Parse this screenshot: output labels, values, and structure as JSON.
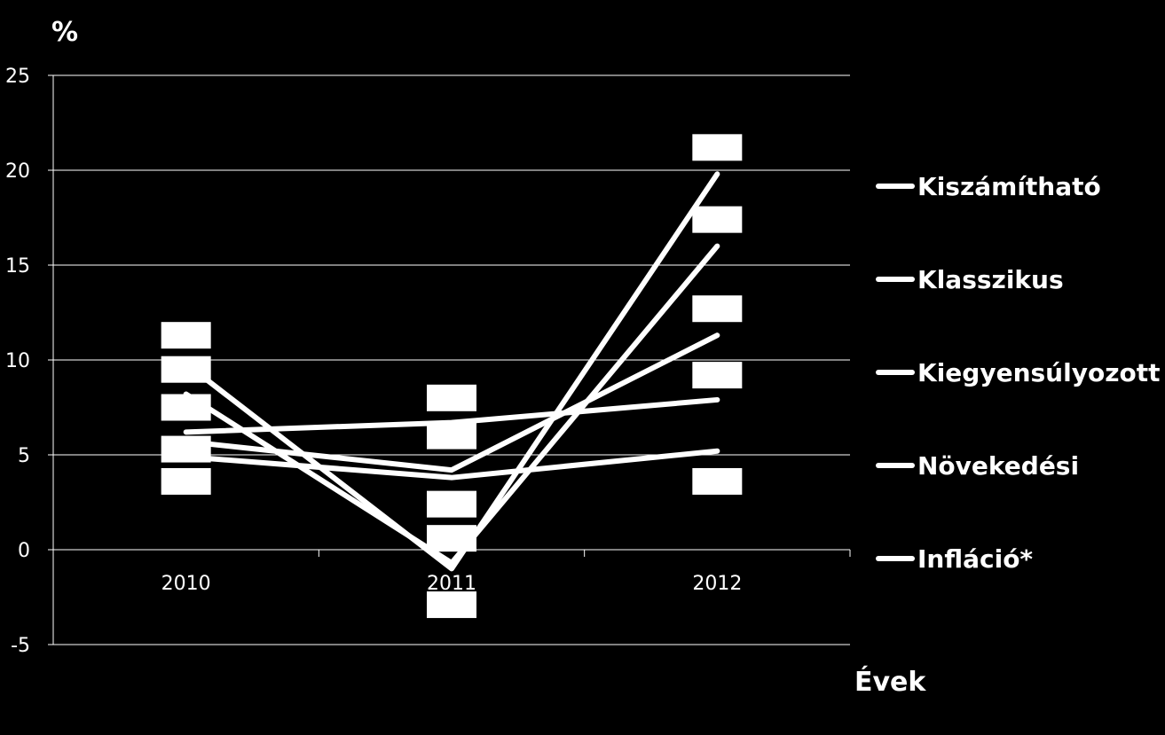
{
  "chart_data": {
    "type": "line",
    "ylabel": "%",
    "xlabel": "Évek",
    "categories": [
      "2010",
      "2011",
      "2012"
    ],
    "ylim": [
      -5,
      25
    ],
    "yticks": [
      -5,
      0,
      5,
      10,
      15,
      20,
      25
    ],
    "grid": true,
    "legend_position": "right",
    "series": [
      {
        "name": "Kiszámítható",
        "values": [
          9.8,
          -1.0,
          19.8
        ]
      },
      {
        "name": "Klasszikus",
        "values": [
          8.2,
          -0.7,
          16.0
        ]
      },
      {
        "name": "Kiegyensúlyozott",
        "values": [
          5.7,
          4.2,
          11.3
        ]
      },
      {
        "name": "Növekedési",
        "values": [
          4.9,
          3.8,
          5.2
        ]
      },
      {
        "name": "Infláció*",
        "values": [
          6.2,
          6.7,
          7.9
        ]
      }
    ],
    "label_boxes": [
      {
        "category": "2010",
        "value": 11.3
      },
      {
        "category": "2010",
        "value": 9.5
      },
      {
        "category": "2010",
        "value": 7.5
      },
      {
        "category": "2010",
        "value": 5.3
      },
      {
        "category": "2010",
        "value": 3.6
      },
      {
        "category": "2011",
        "value": 8.0
      },
      {
        "category": "2011",
        "value": 6.0
      },
      {
        "category": "2011",
        "value": 2.4
      },
      {
        "category": "2011",
        "value": 0.6
      },
      {
        "category": "2011",
        "value": -2.9
      },
      {
        "category": "2012",
        "value": 21.2
      },
      {
        "category": "2012",
        "value": 17.4
      },
      {
        "category": "2012",
        "value": 12.7
      },
      {
        "category": "2012",
        "value": 9.2
      },
      {
        "category": "2012",
        "value": 3.6
      }
    ],
    "colors": {
      "background": "#000000",
      "foreground": "#ffffff"
    }
  }
}
